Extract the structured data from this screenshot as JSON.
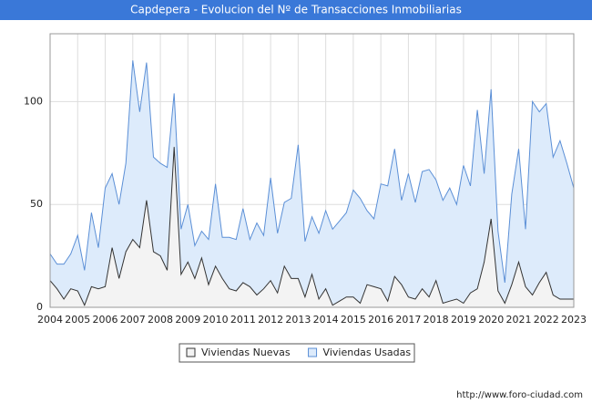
{
  "chart_data": {
    "type": "area",
    "title": "Capdepera - Evolucion del Nº de Transacciones Inmobiliarias",
    "x": [
      2004,
      2004.25,
      2004.5,
      2004.75,
      2005,
      2005.25,
      2005.5,
      2005.75,
      2006,
      2006.25,
      2006.5,
      2006.75,
      2007,
      2007.25,
      2007.5,
      2007.75,
      2008,
      2008.25,
      2008.5,
      2008.75,
      2009,
      2009.25,
      2009.5,
      2009.75,
      2010,
      2010.25,
      2010.5,
      2010.75,
      2011,
      2011.25,
      2011.5,
      2011.75,
      2012,
      2012.25,
      2012.5,
      2012.75,
      2013,
      2013.25,
      2013.5,
      2013.75,
      2014,
      2014.25,
      2014.5,
      2014.75,
      2015,
      2015.25,
      2015.5,
      2015.75,
      2016,
      2016.25,
      2016.5,
      2016.75,
      2017,
      2017.25,
      2017.5,
      2017.75,
      2018,
      2018.25,
      2018.5,
      2018.75,
      2019,
      2019.25,
      2019.5,
      2019.75,
      2020,
      2020.25,
      2020.5,
      2020.75,
      2021,
      2021.25,
      2021.5,
      2021.75,
      2022,
      2022.25,
      2022.5,
      2022.75,
      2023
    ],
    "series": [
      {
        "name": "Viviendas Usadas",
        "color": "#5b8fd6",
        "fill": "#ddebfb",
        "values": [
          26,
          21,
          21,
          26,
          35,
          18,
          46,
          29,
          58,
          65,
          50,
          70,
          120,
          95,
          119,
          73,
          70,
          68,
          104,
          38,
          50,
          30,
          37,
          33,
          60,
          34,
          34,
          33,
          48,
          33,
          41,
          35,
          63,
          36,
          51,
          53,
          79,
          32,
          44,
          36,
          47,
          38,
          42,
          46,
          57,
          53,
          47,
          43,
          60,
          59,
          77,
          52,
          65,
          51,
          66,
          67,
          62,
          52,
          58,
          50,
          69,
          59,
          96,
          65,
          106,
          37,
          12,
          55,
          77,
          38,
          100,
          95,
          99,
          73,
          81,
          70,
          58
        ]
      },
      {
        "name": "Viviendas Nuevas",
        "color": "#333333",
        "fill": "#f3f3f3",
        "values": [
          13,
          9,
          4,
          9,
          8,
          1,
          10,
          9,
          10,
          29,
          14,
          27,
          33,
          29,
          52,
          27,
          25,
          18,
          78,
          16,
          22,
          14,
          24,
          11,
          20,
          14,
          9,
          8,
          12,
          10,
          6,
          9,
          13,
          7,
          20,
          14,
          14,
          5,
          16,
          4,
          9,
          1,
          3,
          5,
          5,
          2,
          11,
          10,
          9,
          3,
          15,
          11,
          5,
          4,
          9,
          5,
          13,
          2,
          3,
          4,
          2,
          7,
          9,
          22,
          43,
          8,
          2,
          11,
          22,
          10,
          6,
          12,
          17,
          6,
          4,
          4,
          4
        ]
      }
    ],
    "xlim": [
      2004,
      2023
    ],
    "xticks": [
      2004,
      2005,
      2006,
      2007,
      2008,
      2009,
      2010,
      2011,
      2012,
      2013,
      2014,
      2015,
      2016,
      2017,
      2018,
      2019,
      2020,
      2021,
      2022,
      2023
    ],
    "ylim": [
      0,
      133
    ],
    "yticks": [
      0,
      50,
      100
    ],
    "grid": true,
    "legend_order": [
      1,
      0
    ],
    "footer": "http://www.foro-ciudad.com"
  }
}
